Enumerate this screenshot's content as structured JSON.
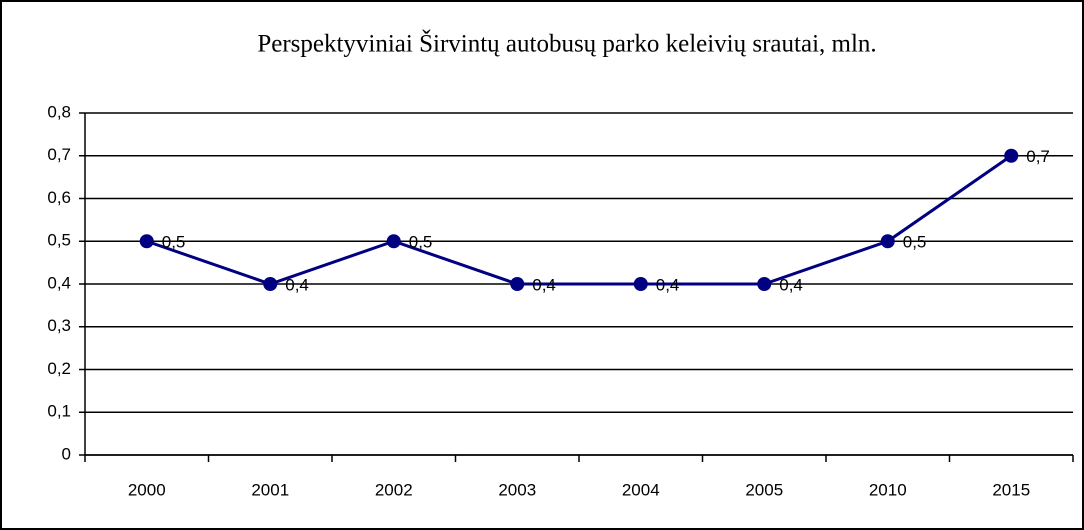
{
  "chart_data": {
    "type": "line",
    "title": "Perspektyviniai Širvintų autobusų parko keleivių srautai, mln.",
    "categories": [
      "2000",
      "2001",
      "2002",
      "2003",
      "2004",
      "2005",
      "2010",
      "2015"
    ],
    "series": [
      {
        "color": "#000080",
        "values": [
          0.5,
          0.4,
          0.5,
          0.4,
          0.4,
          0.4,
          0.5,
          0.7
        ],
        "value_labels": [
          "0,5",
          "0,4",
          "0,5",
          "0,4",
          "0,4",
          "0,4",
          "0,5",
          "0,7"
        ]
      }
    ],
    "ylim": [
      0,
      0.8
    ],
    "yticks": [
      0,
      {
        "value": 0.1,
        "label": "0,1"
      },
      {
        "value": 0.2,
        "label": "0,2"
      },
      {
        "value": 0.3,
        "label": "0,3"
      },
      {
        "value": 0.4,
        "label": "0,4"
      },
      {
        "value": 0.5,
        "label": "0,5"
      },
      {
        "value": 0.6,
        "label": "0,6"
      },
      {
        "value": 0.7,
        "label": "0,7"
      },
      {
        "value": 0.8,
        "label": "0,8"
      }
    ],
    "grid": true
  }
}
